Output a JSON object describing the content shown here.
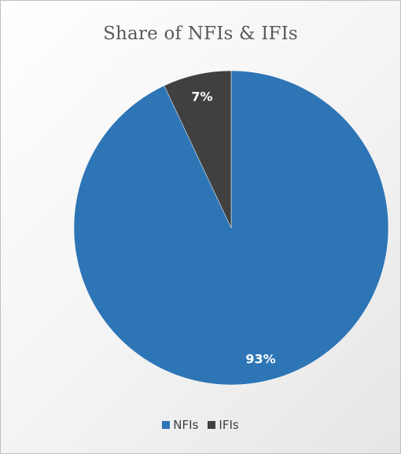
{
  "chart_data": {
    "type": "pie",
    "title": "Share of NFIs & IFIs",
    "slices": [
      {
        "name": "NFIs",
        "value": 93,
        "label": "93%",
        "color": "#2E75B6"
      },
      {
        "name": "IFIs",
        "value": 7,
        "label": "7%",
        "color": "#404040"
      }
    ],
    "legend_position": "bottom",
    "start_angle_deg": 0,
    "direction": "clockwise"
  }
}
